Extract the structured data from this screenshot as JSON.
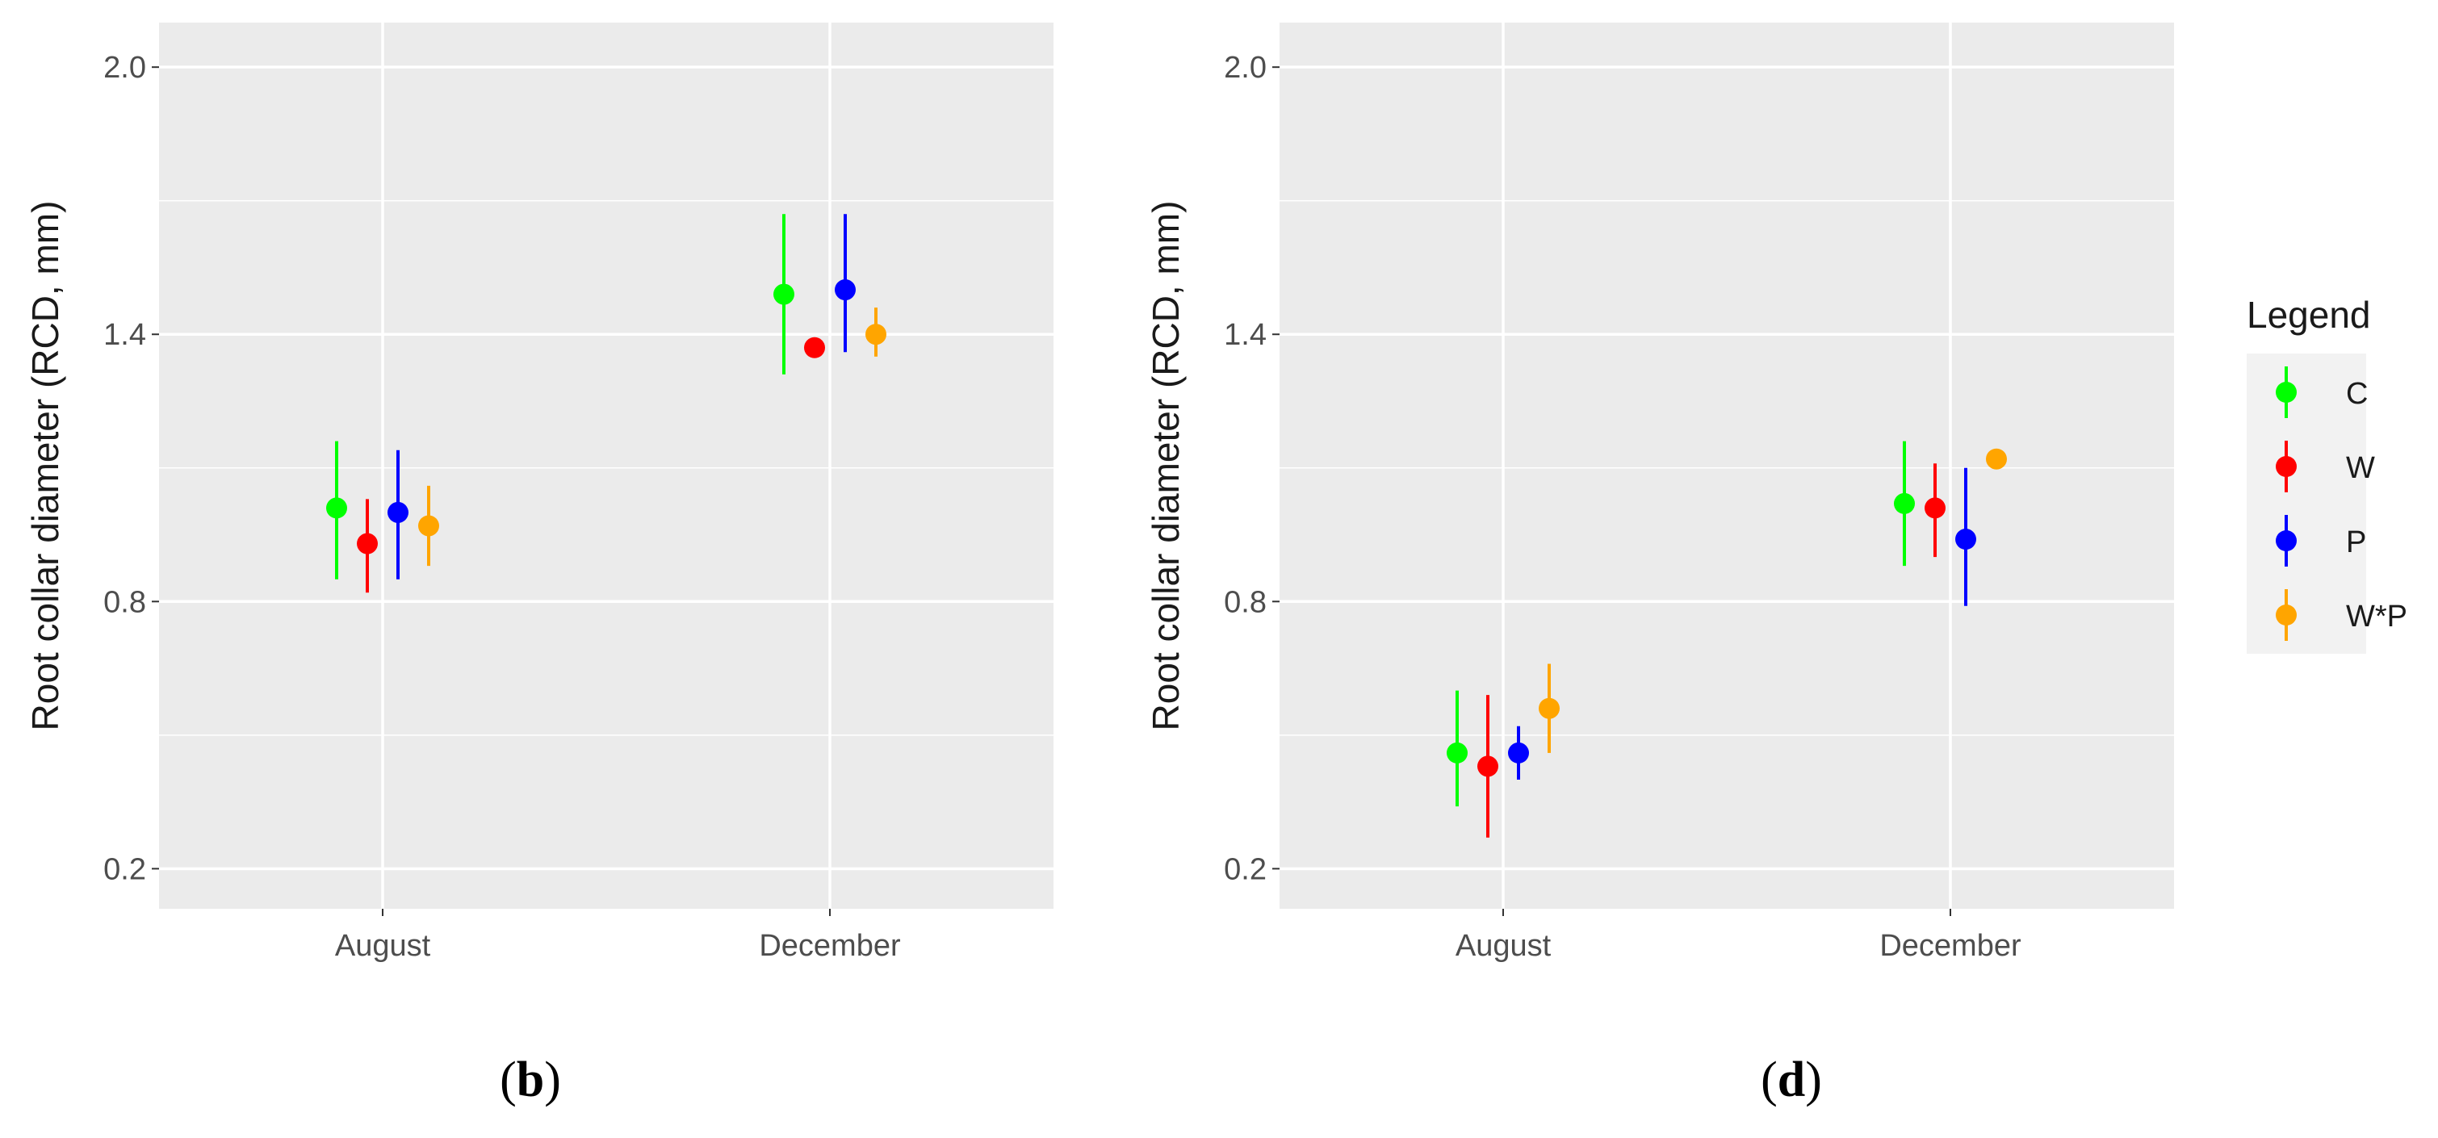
{
  "chart_data": [
    {
      "type": "scatter",
      "panel_label": "b",
      "xlabel": "",
      "ylabel": "Root collar diameter (RCD, mm)",
      "ylim": [
        0.11,
        2.1
      ],
      "y_ticks": [
        0.2,
        0.8,
        1.4,
        2.0
      ],
      "y_tick_labels": [
        "0.2",
        "0.8",
        "1.4",
        "2.0"
      ],
      "categories": [
        "August",
        "December"
      ],
      "grid": true,
      "series": [
        {
          "name": "C",
          "color": "#00ff00",
          "values": [
            1.01,
            1.49
          ],
          "lower": [
            0.85,
            1.31
          ],
          "upper": [
            1.16,
            1.67
          ]
        },
        {
          "name": "W",
          "color": "#ff0000",
          "values": [
            0.93,
            1.37
          ],
          "lower": [
            0.82,
            1.37
          ],
          "upper": [
            1.03,
            1.37
          ]
        },
        {
          "name": "P",
          "color": "#0000ff",
          "values": [
            1.0,
            1.5
          ],
          "lower": [
            0.85,
            1.36
          ],
          "upper": [
            1.14,
            1.67
          ]
        },
        {
          "name": "W*P",
          "color": "#ffa500",
          "values": [
            0.97,
            1.4
          ],
          "lower": [
            0.88,
            1.35
          ],
          "upper": [
            1.06,
            1.46
          ]
        }
      ]
    },
    {
      "type": "scatter",
      "panel_label": "d",
      "xlabel": "",
      "ylabel": "Root collar diameter (RCD, mm)",
      "ylim": [
        0.11,
        2.1
      ],
      "y_ticks": [
        0.2,
        0.8,
        1.4,
        2.0
      ],
      "y_tick_labels": [
        "0.2",
        "0.8",
        "1.4",
        "2.0"
      ],
      "categories": [
        "August",
        "December"
      ],
      "grid": true,
      "series": [
        {
          "name": "C",
          "color": "#00ff00",
          "values": [
            0.46,
            1.02
          ],
          "lower": [
            0.34,
            0.88
          ],
          "upper": [
            0.6,
            1.16
          ]
        },
        {
          "name": "W",
          "color": "#ff0000",
          "values": [
            0.43,
            1.01
          ],
          "lower": [
            0.27,
            0.9
          ],
          "upper": [
            0.59,
            1.11
          ]
        },
        {
          "name": "P",
          "color": "#0000ff",
          "values": [
            0.46,
            0.94
          ],
          "lower": [
            0.4,
            0.79
          ],
          "upper": [
            0.52,
            1.1
          ]
        },
        {
          "name": "W*P",
          "color": "#ffa500",
          "values": [
            0.56,
            1.12
          ],
          "lower": [
            0.46,
            1.12
          ],
          "upper": [
            0.66,
            1.12
          ]
        }
      ]
    }
  ],
  "legend": {
    "title": "Legend",
    "placement": "right",
    "items": [
      {
        "label": "C",
        "color": "#00ff00"
      },
      {
        "label": "W",
        "color": "#ff0000"
      },
      {
        "label": "P",
        "color": "#0000ff"
      },
      {
        "label": "W*P",
        "color": "#ffa500"
      }
    ]
  },
  "colors": {
    "panel_background": "#ebebeb",
    "grid": "#ffffff",
    "tick_text": "#4d4d4d"
  }
}
